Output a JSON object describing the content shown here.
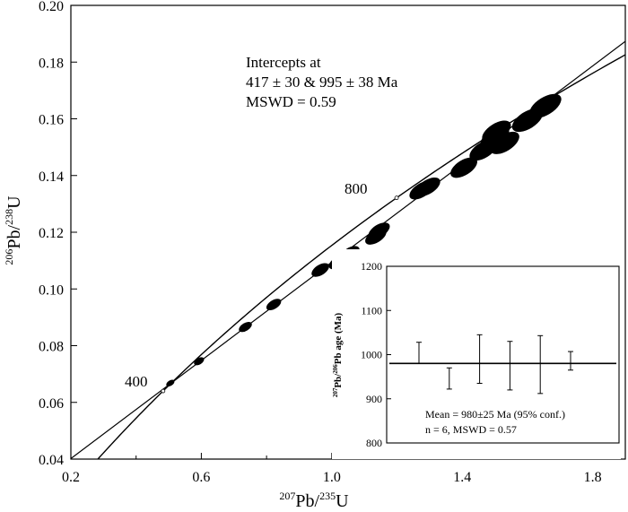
{
  "main_plot": {
    "xlabel_pre": "207",
    "xlabel_el": "Pb/",
    "xlabel_pre2": "235",
    "xlabel_el2": "U",
    "ylabel_pre": "206",
    "ylabel_el": "Pb/",
    "ylabel_pre2": "238",
    "ylabel_el2": "U",
    "annotation_lines": [
      "Intercepts at",
      "417 ± 30 & 995 ± 38 Ma",
      "MSWD = 0.59"
    ],
    "age_labels": [
      "400",
      "800"
    ]
  },
  "inset_plot": {
    "ylabel_pre": "207",
    "ylabel_el": "Pb/",
    "ylabel_pre2": "206",
    "ylabel_el2": "Pb age (Ma)",
    "stats_lines": [
      "Mean = 980±25  Ma (95% conf.)",
      "n = 6, MSWD = 0.57"
    ]
  },
  "chart_data": [
    {
      "type": "scatter",
      "subtype": "concordia",
      "xlim": [
        0.2,
        1.9
      ],
      "ylim": [
        0.04,
        0.2
      ],
      "x_ticks": [
        0.2,
        0.6,
        1.0,
        1.4,
        1.8
      ],
      "y_ticks": [
        0.04,
        0.06,
        0.08,
        0.1,
        0.12,
        0.14,
        0.16,
        0.18,
        0.2
      ],
      "x_tick_labels": [
        "0.2",
        "0.6",
        "1.0",
        "1.4",
        "1.8"
      ],
      "y_tick_labels": [
        "0.04",
        "0.06",
        "0.08",
        "0.10",
        "0.12",
        "0.14",
        "0.16",
        "0.18",
        "0.20"
      ],
      "xlabel": "207Pb/235U",
      "ylabel": "206Pb/238U",
      "discordia": {
        "lower_intercept_ma": 417,
        "upper_intercept_ma": 995
      },
      "concordia_age_markers_ma": [
        400,
        800
      ],
      "ellipses": [
        {
          "x": 0.505,
          "y": 0.0668
        },
        {
          "x": 0.593,
          "y": 0.0745
        },
        {
          "x": 0.735,
          "y": 0.0866
        },
        {
          "x": 0.822,
          "y": 0.0945
        },
        {
          "x": 0.965,
          "y": 0.1067
        },
        {
          "x": 1.02,
          "y": 0.1095
        },
        {
          "x": 1.055,
          "y": 0.1125
        },
        {
          "x": 1.135,
          "y": 0.1185
        },
        {
          "x": 1.145,
          "y": 0.1205
        },
        {
          "x": 1.275,
          "y": 0.1348
        },
        {
          "x": 1.295,
          "y": 0.136
        },
        {
          "x": 1.405,
          "y": 0.1428
        },
        {
          "x": 1.465,
          "y": 0.149
        },
        {
          "x": 1.5,
          "y": 0.1535
        },
        {
          "x": 1.53,
          "y": 0.1515
        },
        {
          "x": 1.505,
          "y": 0.1555
        },
        {
          "x": 1.6,
          "y": 0.1595
        },
        {
          "x": 1.655,
          "y": 0.1645
        }
      ]
    },
    {
      "type": "scatter",
      "subtype": "error-bars",
      "ylim": [
        800,
        1200
      ],
      "y_ticks": [
        800,
        900,
        1000,
        1100,
        1200
      ],
      "y_tick_labels": [
        "800",
        "900",
        "1000",
        "1100",
        "1200"
      ],
      "ylabel": "207Pb/206Pb age (Ma)",
      "mean": 980,
      "points": [
        {
          "value": 980,
          "low": 980,
          "high": 1028
        },
        {
          "value": 980,
          "low": 922,
          "high": 970
        },
        {
          "value": 980,
          "low": 935,
          "high": 1045
        },
        {
          "value": 980,
          "low": 920,
          "high": 1030
        },
        {
          "value": 980,
          "low": 912,
          "high": 1043
        },
        {
          "value": 980,
          "low": 965,
          "high": 1007
        }
      ]
    }
  ]
}
